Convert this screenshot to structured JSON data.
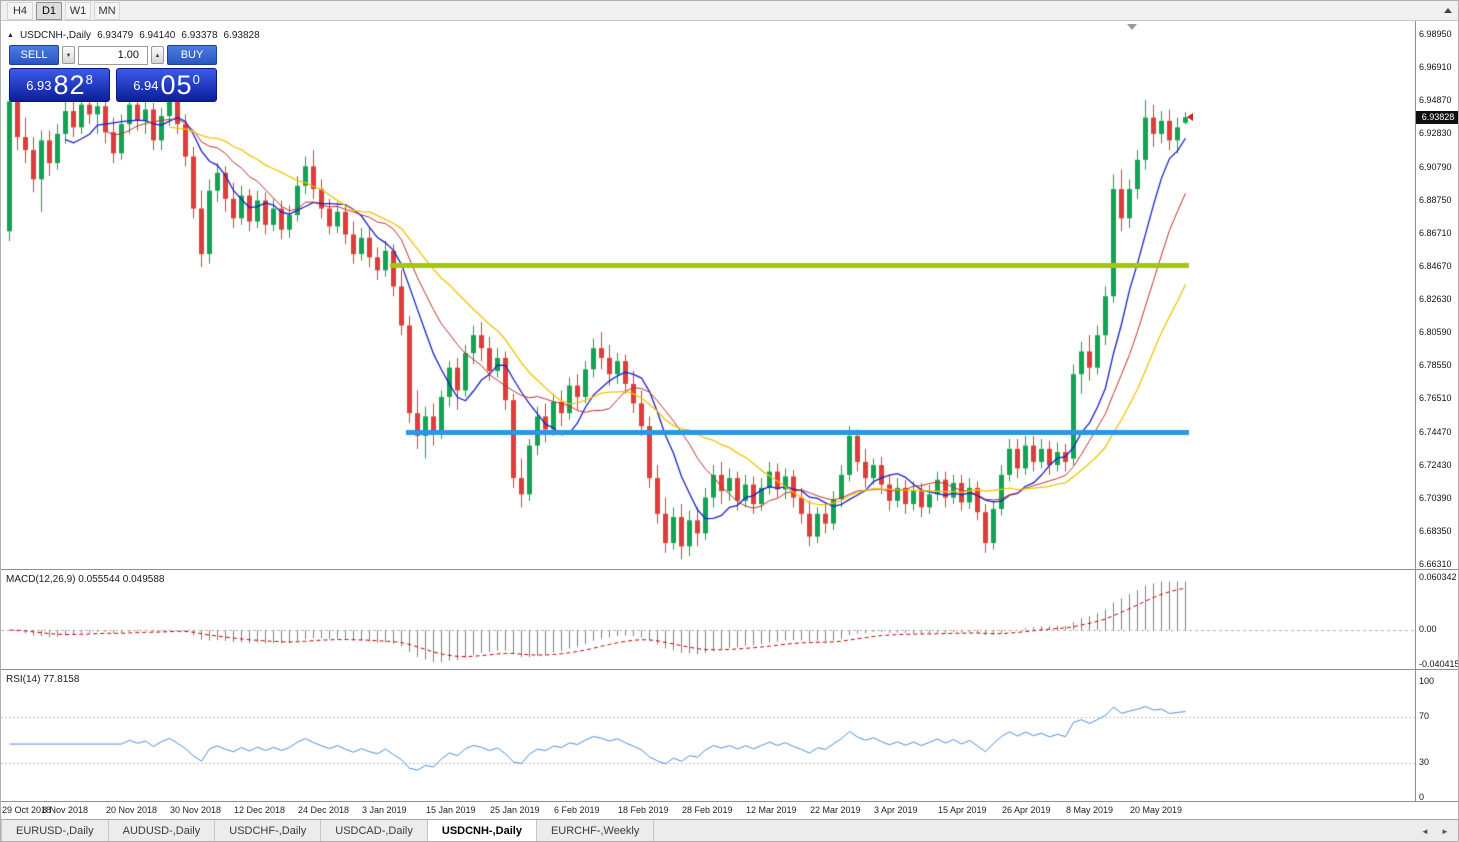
{
  "toolbar": {
    "timeframes": [
      {
        "label": "H4",
        "active": false
      },
      {
        "label": "D1",
        "active": true
      },
      {
        "label": "W1",
        "active": false
      },
      {
        "label": "MN",
        "active": false
      }
    ]
  },
  "icons": {
    "panel_toggle": "▲",
    "spinner_up": "▲",
    "spinner_down": "▼",
    "tab_scroll_left": "◄",
    "tab_scroll_right": "►"
  },
  "chart": {
    "symbol_label": "USDCNH-,Daily",
    "ohlc": {
      "open": "6.93479",
      "high": "6.94140",
      "low": "6.93378",
      "close": "6.93828"
    },
    "trade_panel": {
      "sell_label": "SELL",
      "buy_label": "BUY",
      "volume": "1.00",
      "sell_price": {
        "prefix": "6.93",
        "big": "82",
        "sup": "8"
      },
      "buy_price": {
        "prefix": "6.94",
        "big": "05",
        "sup": "0"
      }
    },
    "current_price": 6.93828,
    "current_price_label": "6.93828",
    "price_axis": [
      "6.98950",
      "6.96910",
      "6.94870",
      "6.92830",
      "6.90790",
      "6.88750",
      "6.86710",
      "6.84670",
      "6.82630",
      "6.80590",
      "6.78550",
      "6.76510",
      "6.74470",
      "6.72430",
      "6.70390",
      "6.68350",
      "6.66310"
    ]
  },
  "macd_panel": {
    "label": "MACD(12,26,9) 0.055544 0.049588",
    "axis_labels": [
      "0.060342",
      "0.00",
      "-0.040415"
    ]
  },
  "rsi_panel": {
    "label": "RSI(14) 77.8158",
    "axis_labels": [
      "100",
      "70",
      "30",
      "0"
    ]
  },
  "tabs": {
    "items": [
      {
        "label": "EURUSD-,Daily",
        "active": false
      },
      {
        "label": "AUDUSD-,Daily",
        "active": false
      },
      {
        "label": "USDCHF-,Daily",
        "active": false
      },
      {
        "label": "USDCAD-,Daily",
        "active": false
      },
      {
        "label": "USDCNH-,Daily",
        "active": true
      },
      {
        "label": "EURCHF-,Weekly",
        "active": false
      }
    ]
  },
  "chart_data": {
    "type": "candlestick",
    "symbol": "USDCNH-",
    "timeframe": "Daily",
    "price_range": {
      "top": 6.9895,
      "bottom": 6.6631
    },
    "colors": {
      "up": "#10A456",
      "down": "#E23B3B",
      "macd_histogram": "#808080",
      "macd_signal": "#C00000",
      "rsi_line": "#4C8EDA"
    },
    "moving_averages": [
      {
        "period": 8,
        "color": "#1822C8",
        "width": 1.3
      },
      {
        "period": 13,
        "color": "#C03030",
        "width": 1
      },
      {
        "period": 21,
        "color": "#EFC400",
        "width": 1.3
      }
    ],
    "hlines": [
      {
        "price": 6.8473,
        "color": "#A2C80A",
        "from_index": 48,
        "to_index": 147
      },
      {
        "price": 6.7447,
        "color": "#2E96E0",
        "from_index": 50,
        "to_index": 147
      }
    ],
    "macd": {
      "fast": 12,
      "slow": 26,
      "signal": 9,
      "value": 0.055544,
      "signal_value": 0.049588,
      "scale_top": 0.060342,
      "scale_bottom": -0.040415
    },
    "rsi": {
      "period": 14,
      "value": 77.8158,
      "levels": [
        70,
        30
      ]
    },
    "date_ticks": [
      {
        "index": 0,
        "label": "29 Oct 2018"
      },
      {
        "index": 8,
        "label": "8 Nov 2018"
      },
      {
        "index": 16,
        "label": "20 Nov 2018"
      },
      {
        "index": 24,
        "label": "30 Nov 2018"
      },
      {
        "index": 32,
        "label": "12 Dec 2018"
      },
      {
        "index": 40,
        "label": "24 Dec 2018"
      },
      {
        "index": 48,
        "label": "3 Jan 2019"
      },
      {
        "index": 56,
        "label": "15 Jan 2019"
      },
      {
        "index": 64,
        "label": "25 Jan 2019"
      },
      {
        "index": 72,
        "label": "6 Feb 2019"
      },
      {
        "index": 80,
        "label": "18 Feb 2019"
      },
      {
        "index": 88,
        "label": "28 Feb 2019"
      },
      {
        "index": 96,
        "label": "12 Mar 2019"
      },
      {
        "index": 104,
        "label": "22 Mar 2019"
      },
      {
        "index": 112,
        "label": "3 Apr 2019"
      },
      {
        "index": 120,
        "label": "15 Apr 2019"
      },
      {
        "index": 128,
        "label": "26 Apr 2019"
      },
      {
        "index": 136,
        "label": "8 May 2019"
      },
      {
        "index": 144,
        "label": "20 May 2019"
      }
    ],
    "candles": [
      [
        6.868,
        6.956,
        6.862,
        6.948
      ],
      [
        6.948,
        6.956,
        6.918,
        6.926
      ],
      [
        6.926,
        6.938,
        6.91,
        6.918
      ],
      [
        6.918,
        6.926,
        6.892,
        6.9
      ],
      [
        6.9,
        6.93,
        6.88,
        6.924
      ],
      [
        6.924,
        6.93,
        6.902,
        6.91
      ],
      [
        6.91,
        6.934,
        6.906,
        6.928
      ],
      [
        6.928,
        6.948,
        6.922,
        6.942
      ],
      [
        6.942,
        6.95,
        6.926,
        6.932
      ],
      [
        6.932,
        6.952,
        6.928,
        6.946
      ],
      [
        6.946,
        6.954,
        6.934,
        6.94
      ],
      [
        6.94,
        6.951,
        6.928,
        6.945
      ],
      [
        6.945,
        6.949,
        6.922,
        6.929
      ],
      [
        6.929,
        6.938,
        6.91,
        6.916
      ],
      [
        6.916,
        6.94,
        6.912,
        6.934
      ],
      [
        6.934,
        6.951,
        6.928,
        6.946
      ],
      [
        6.946,
        6.952,
        6.93,
        6.936
      ],
      [
        6.936,
        6.949,
        6.928,
        6.943
      ],
      [
        6.943,
        6.947,
        6.918,
        6.924
      ],
      [
        6.924,
        6.944,
        6.918,
        6.939
      ],
      [
        6.939,
        6.954,
        6.933,
        6.949
      ],
      [
        6.949,
        6.952,
        6.928,
        6.934
      ],
      [
        6.934,
        6.94,
        6.908,
        6.914
      ],
      [
        6.914,
        6.92,
        6.876,
        6.882
      ],
      [
        6.882,
        6.893,
        6.846,
        6.854
      ],
      [
        6.854,
        6.9,
        6.848,
        6.893
      ],
      [
        6.893,
        6.91,
        6.886,
        6.904
      ],
      [
        6.904,
        6.908,
        6.88,
        6.888
      ],
      [
        6.888,
        6.898,
        6.87,
        6.876
      ],
      [
        6.876,
        6.896,
        6.872,
        6.89
      ],
      [
        6.89,
        6.894,
        6.868,
        6.874
      ],
      [
        6.874,
        6.893,
        6.87,
        6.887
      ],
      [
        6.887,
        6.892,
        6.866,
        6.872
      ],
      [
        6.872,
        6.888,
        6.868,
        6.882
      ],
      [
        6.882,
        6.887,
        6.863,
        6.869
      ],
      [
        6.869,
        6.884,
        6.864,
        6.878
      ],
      [
        6.878,
        6.902,
        6.874,
        6.896
      ],
      [
        6.896,
        6.914,
        6.891,
        6.908
      ],
      [
        6.908,
        6.918,
        6.888,
        6.894
      ],
      [
        6.894,
        6.9,
        6.876,
        6.882
      ],
      [
        6.882,
        6.888,
        6.866,
        6.871
      ],
      [
        6.871,
        6.886,
        6.867,
        6.88
      ],
      [
        6.88,
        6.884,
        6.86,
        6.866
      ],
      [
        6.866,
        6.874,
        6.848,
        6.854
      ],
      [
        6.854,
        6.87,
        6.85,
        6.864
      ],
      [
        6.864,
        6.87,
        6.846,
        6.852
      ],
      [
        6.852,
        6.858,
        6.838,
        6.844
      ],
      [
        6.844,
        6.862,
        6.84,
        6.856
      ],
      [
        6.856,
        6.86,
        6.828,
        6.834
      ],
      [
        6.834,
        6.844,
        6.804,
        6.81
      ],
      [
        6.81,
        6.816,
        6.75,
        6.756
      ],
      [
        6.756,
        6.77,
        6.734,
        6.742
      ],
      [
        6.742,
        6.76,
        6.728,
        6.754
      ],
      [
        6.754,
        6.762,
        6.736,
        6.744
      ],
      [
        6.744,
        6.77,
        6.74,
        6.766
      ],
      [
        6.766,
        6.788,
        6.76,
        6.784
      ],
      [
        6.784,
        6.79,
        6.758,
        6.77
      ],
      [
        6.77,
        6.798,
        6.766,
        6.793
      ],
      [
        6.793,
        6.81,
        6.786,
        6.804
      ],
      [
        6.804,
        6.812,
        6.788,
        6.796
      ],
      [
        6.796,
        6.803,
        6.776,
        6.782
      ],
      [
        6.782,
        6.796,
        6.778,
        6.79
      ],
      [
        6.79,
        6.794,
        6.758,
        6.764
      ],
      [
        6.764,
        6.768,
        6.71,
        6.716
      ],
      [
        6.716,
        6.728,
        6.698,
        6.706
      ],
      [
        6.706,
        6.74,
        6.702,
        6.736
      ],
      [
        6.736,
        6.76,
        6.73,
        6.754
      ],
      [
        6.754,
        6.762,
        6.738,
        6.746
      ],
      [
        6.746,
        6.768,
        6.742,
        6.763
      ],
      [
        6.763,
        6.77,
        6.748,
        6.756
      ],
      [
        6.756,
        6.778,
        6.752,
        6.773
      ],
      [
        6.773,
        6.78,
        6.758,
        6.766
      ],
      [
        6.766,
        6.788,
        6.762,
        6.783
      ],
      [
        6.783,
        6.802,
        6.778,
        6.796
      ],
      [
        6.796,
        6.806,
        6.783,
        6.79
      ],
      [
        6.79,
        6.798,
        6.773,
        6.78
      ],
      [
        6.78,
        6.793,
        6.774,
        6.788
      ],
      [
        6.788,
        6.792,
        6.768,
        6.774
      ],
      [
        6.774,
        6.782,
        6.756,
        6.762
      ],
      [
        6.762,
        6.77,
        6.742,
        6.748
      ],
      [
        6.748,
        6.754,
        6.71,
        6.716
      ],
      [
        6.716,
        6.724,
        6.688,
        6.694
      ],
      [
        6.694,
        6.704,
        6.67,
        6.676
      ],
      [
        6.676,
        6.698,
        6.672,
        6.692
      ],
      [
        6.692,
        6.7,
        6.666,
        6.674
      ],
      [
        6.674,
        6.696,
        6.668,
        6.69
      ],
      [
        6.69,
        6.698,
        6.674,
        6.682
      ],
      [
        6.682,
        6.71,
        6.678,
        6.704
      ],
      [
        6.704,
        6.724,
        6.698,
        6.718
      ],
      [
        6.718,
        6.726,
        6.7,
        6.708
      ],
      [
        6.708,
        6.722,
        6.702,
        6.716
      ],
      [
        6.716,
        6.72,
        6.696,
        6.702
      ],
      [
        6.702,
        6.718,
        6.698,
        6.712
      ],
      [
        6.712,
        6.717,
        6.694,
        6.7
      ],
      [
        6.7,
        6.716,
        6.696,
        6.71
      ],
      [
        6.71,
        6.726,
        6.706,
        6.72
      ],
      [
        6.72,
        6.725,
        6.704,
        6.709
      ],
      [
        6.709,
        6.722,
        6.703,
        6.717
      ],
      [
        6.717,
        6.721,
        6.698,
        6.704
      ],
      [
        6.704,
        6.71,
        6.688,
        6.694
      ],
      [
        6.694,
        6.702,
        6.674,
        6.68
      ],
      [
        6.68,
        6.698,
        6.676,
        6.694
      ],
      [
        6.694,
        6.7,
        6.682,
        6.688
      ],
      [
        6.688,
        6.708,
        6.684,
        6.703
      ],
      [
        6.703,
        6.724,
        6.698,
        6.718
      ],
      [
        6.718,
        6.748,
        6.714,
        6.742
      ],
      [
        6.742,
        6.746,
        6.72,
        6.726
      ],
      [
        6.726,
        6.734,
        6.71,
        6.716
      ],
      [
        6.716,
        6.728,
        6.712,
        6.724
      ],
      [
        6.724,
        6.729,
        6.706,
        6.712
      ],
      [
        6.712,
        6.718,
        6.696,
        6.702
      ],
      [
        6.702,
        6.716,
        6.698,
        6.71
      ],
      [
        6.71,
        6.715,
        6.694,
        6.7
      ],
      [
        6.7,
        6.714,
        6.696,
        6.708
      ],
      [
        6.708,
        6.713,
        6.692,
        6.698
      ],
      [
        6.698,
        6.712,
        6.694,
        6.706
      ],
      [
        6.706,
        6.72,
        6.702,
        6.715
      ],
      [
        6.715,
        6.72,
        6.698,
        6.704
      ],
      [
        6.704,
        6.718,
        6.7,
        6.713
      ],
      [
        6.713,
        6.718,
        6.696,
        6.701
      ],
      [
        6.701,
        6.716,
        6.697,
        6.71
      ],
      [
        6.71,
        6.714,
        6.69,
        6.695
      ],
      [
        6.695,
        6.7,
        6.67,
        6.676
      ],
      [
        6.676,
        6.702,
        6.672,
        6.697
      ],
      [
        6.697,
        6.724,
        6.693,
        6.718
      ],
      [
        6.718,
        6.74,
        6.714,
        6.734
      ],
      [
        6.734,
        6.74,
        6.716,
        6.722
      ],
      [
        6.722,
        6.742,
        6.718,
        6.736
      ],
      [
        6.736,
        6.742,
        6.72,
        6.726
      ],
      [
        6.726,
        6.74,
        6.722,
        6.734
      ],
      [
        6.734,
        6.739,
        6.718,
        6.724
      ],
      [
        6.724,
        6.738,
        6.72,
        6.732
      ],
      [
        6.732,
        6.737,
        6.72,
        6.726
      ],
      [
        6.728,
        6.786,
        6.724,
        6.78
      ],
      [
        6.78,
        6.8,
        6.768,
        6.794
      ],
      [
        6.794,
        6.804,
        6.776,
        6.784
      ],
      [
        6.784,
        6.81,
        6.78,
        6.804
      ],
      [
        6.804,
        6.834,
        6.798,
        6.828
      ],
      [
        6.828,
        6.903,
        6.824,
        6.894
      ],
      [
        6.894,
        6.906,
        6.868,
        6.876
      ],
      [
        6.876,
        6.9,
        6.87,
        6.894
      ],
      [
        6.894,
        6.918,
        6.888,
        6.912
      ],
      [
        6.912,
        6.949,
        6.906,
        6.938
      ],
      [
        6.938,
        6.946,
        6.92,
        6.928
      ],
      [
        6.928,
        6.942,
        6.922,
        6.936
      ],
      [
        6.936,
        6.943,
        6.918,
        6.924
      ],
      [
        6.924,
        6.938,
        6.916,
        6.932
      ],
      [
        6.93479,
        6.9414,
        6.93378,
        6.93828
      ]
    ]
  }
}
